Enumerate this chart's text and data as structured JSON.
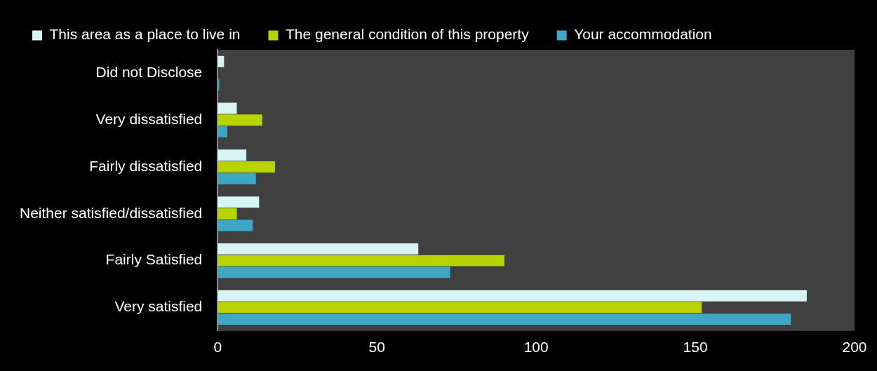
{
  "chart_data": {
    "type": "bar",
    "orientation": "horizontal",
    "categories": [
      "Did not Disclose",
      "Very dissatisfied",
      "Fairly dissatisfied",
      "Neither satisfied/dissatisfied",
      "Fairly Satisfied",
      "Very satisfied"
    ],
    "series": [
      {
        "name": "This area as a place to live in",
        "color": "#d8f4f4",
        "values": [
          2,
          6,
          9,
          13,
          63,
          185
        ]
      },
      {
        "name": "The general condition of this property",
        "color": "#b8d400",
        "values": [
          0,
          14,
          18,
          6,
          90,
          152
        ]
      },
      {
        "name": "Your accommodation",
        "color": "#3fa6c4",
        "values": [
          0.5,
          3,
          12,
          11,
          73,
          180
        ]
      }
    ],
    "xlim": [
      0,
      200
    ],
    "xticks": [
      0,
      50,
      100,
      150,
      200
    ],
    "grid": false,
    "legend": "top left"
  }
}
